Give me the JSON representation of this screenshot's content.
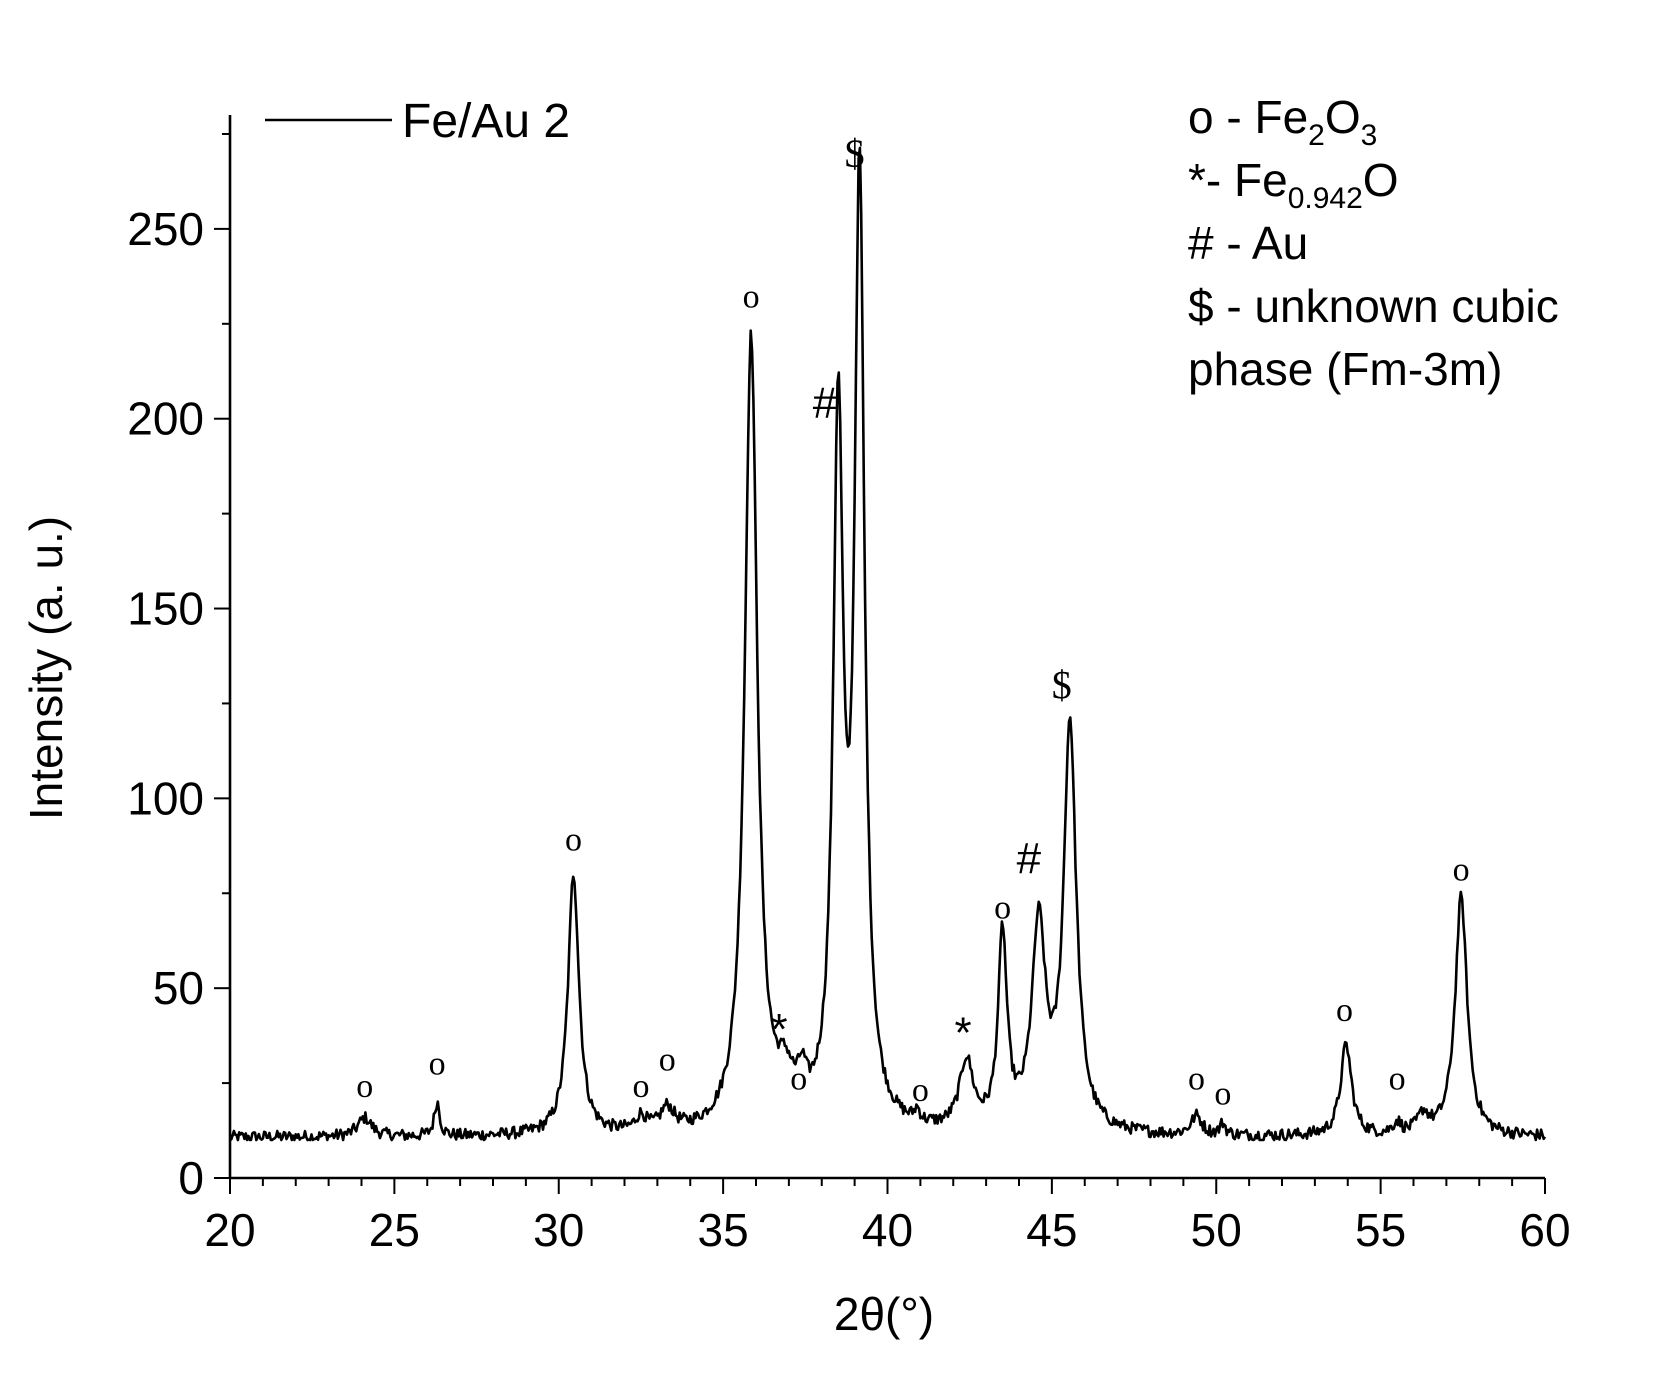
{
  "chart_data": {
    "type": "line",
    "title": "",
    "xlabel": "2θ(°)",
    "ylabel": "Intensity (a. u.)",
    "xlim": [
      20,
      60
    ],
    "ylim": [
      0,
      280
    ],
    "x_ticks": [
      20,
      25,
      30,
      35,
      40,
      45,
      50,
      55,
      60
    ],
    "y_ticks": [
      0,
      50,
      100,
      150,
      200,
      250
    ],
    "grid": false,
    "legend_position": "top-left",
    "baseline": 10,
    "series": [
      {
        "name": "Fe/Au 2",
        "color": "#000000",
        "peaks": [
          {
            "x": 24.1,
            "height": 5,
            "width": 0.25
          },
          {
            "x": 26.3,
            "height": 9,
            "width": 0.1
          },
          {
            "x": 30.45,
            "height": 69,
            "width": 0.2
          },
          {
            "x": 32.5,
            "height": 4,
            "width": 0.2
          },
          {
            "x": 33.3,
            "height": 6,
            "width": 0.25
          },
          {
            "x": 35.85,
            "height": 209,
            "width": 0.23
          },
          {
            "x": 36.9,
            "height": 10,
            "width": 0.3
          },
          {
            "x": 37.4,
            "height": 8,
            "width": 0.15
          },
          {
            "x": 38.5,
            "height": 183,
            "width": 0.18
          },
          {
            "x": 39.15,
            "height": 247,
            "width": 0.18
          },
          {
            "x": 40.9,
            "height": 3,
            "width": 0.1
          },
          {
            "x": 42.4,
            "height": 18,
            "width": 0.25
          },
          {
            "x": 43.5,
            "height": 51,
            "width": 0.16
          },
          {
            "x": 44.6,
            "height": 53,
            "width": 0.25
          },
          {
            "x": 45.55,
            "height": 107,
            "width": 0.23
          },
          {
            "x": 49.4,
            "height": 5,
            "width": 0.2
          },
          {
            "x": 50.2,
            "height": 3,
            "width": 0.1
          },
          {
            "x": 53.95,
            "height": 24,
            "width": 0.2
          },
          {
            "x": 55.5,
            "height": 3,
            "width": 0.15
          },
          {
            "x": 56.3,
            "height": 5,
            "width": 0.2
          },
          {
            "x": 57.45,
            "height": 63,
            "width": 0.22
          }
        ]
      }
    ],
    "annotations": [
      {
        "text": "o",
        "x": 24.1,
        "y": 25,
        "kind": "o"
      },
      {
        "text": "o",
        "x": 26.3,
        "y": 31,
        "kind": "o"
      },
      {
        "text": "o",
        "x": 30.45,
        "y": 90,
        "kind": "o"
      },
      {
        "text": "o",
        "x": 32.5,
        "y": 25,
        "kind": "o"
      },
      {
        "text": "o",
        "x": 33.3,
        "y": 32,
        "kind": "o"
      },
      {
        "text": "o",
        "x": 35.85,
        "y": 233,
        "kind": "o"
      },
      {
        "text": "*",
        "x": 36.7,
        "y": 39,
        "kind": "sym"
      },
      {
        "text": "o",
        "x": 37.3,
        "y": 27,
        "kind": "o"
      },
      {
        "text": "#",
        "x": 38.1,
        "y": 204,
        "kind": "sym"
      },
      {
        "text": "$",
        "x": 39.0,
        "y": 270,
        "kind": "dollar"
      },
      {
        "text": "o",
        "x": 41.0,
        "y": 24,
        "kind": "o"
      },
      {
        "text": "*",
        "x": 42.3,
        "y": 38,
        "kind": "sym"
      },
      {
        "text": "o",
        "x": 43.5,
        "y": 72,
        "kind": "o"
      },
      {
        "text": "#",
        "x": 44.3,
        "y": 84,
        "kind": "sym"
      },
      {
        "text": "$",
        "x": 45.3,
        "y": 130,
        "kind": "dollar"
      },
      {
        "text": "o",
        "x": 49.4,
        "y": 27,
        "kind": "o"
      },
      {
        "text": "o",
        "x": 50.2,
        "y": 23,
        "kind": "o"
      },
      {
        "text": "o",
        "x": 53.9,
        "y": 45,
        "kind": "o"
      },
      {
        "text": "o",
        "x": 55.5,
        "y": 27,
        "kind": "o"
      },
      {
        "text": "o",
        "x": 57.45,
        "y": 82,
        "kind": "o"
      }
    ],
    "phase_legend": [
      {
        "symbol": "o",
        "text": " - Fe",
        "sub1": "2",
        "mid": "O",
        "sub2": "3",
        "tail": ""
      },
      {
        "symbol": "*",
        "text": "- Fe",
        "sub1": "0.942",
        "mid": "O",
        "sub2": "",
        "tail": ""
      },
      {
        "symbol": "#",
        "text": " - Au",
        "sub1": "",
        "mid": "",
        "sub2": "",
        "tail": ""
      },
      {
        "symbol": "$",
        "text": " - unknown cubic",
        "sub1": "",
        "mid": "",
        "sub2": "",
        "tail": ""
      },
      {
        "symbol": "",
        "text": "phase (Fm-3m)",
        "sub1": "",
        "mid": "",
        "sub2": "",
        "tail": ""
      }
    ]
  }
}
